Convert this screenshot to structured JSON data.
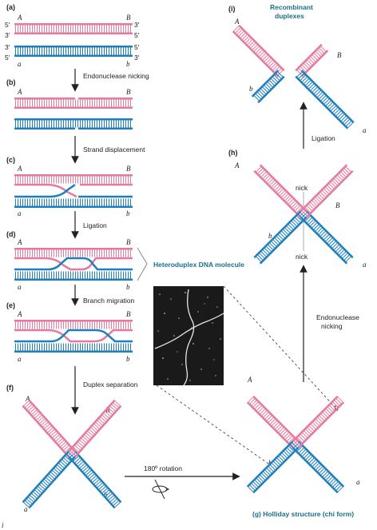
{
  "colors": {
    "pink": "#e5799f",
    "blue": "#1e7fbd",
    "teal": "#1b6f8a",
    "text": "#222222"
  },
  "panels": {
    "a": "(a)",
    "b": "(b)",
    "c": "(c)",
    "d": "(d)",
    "e": "(e)",
    "f": "(f)",
    "g": "(g)",
    "h": "(h)",
    "i": "(i)"
  },
  "ends": {
    "five": "5′",
    "three": "3′"
  },
  "alleles": {
    "A": "A",
    "B": "B",
    "a": "a",
    "b": "b"
  },
  "steps": {
    "nicking": "Endonuclease nicking",
    "displacement": "Strand displacement",
    "ligation": "Ligation",
    "branch": "Branch migration",
    "separation": "Duplex separation",
    "rotation": "180º rotation",
    "endo_line1": "Endonuclease",
    "endo_line2": "nicking",
    "ligation2": "Ligation",
    "nick": "nick"
  },
  "labels": {
    "heteroduplex": "Heteroduplex DNA molecule",
    "holliday": "(g)  Holliday structure (chi form)",
    "recombinant_line1": "Recombinant",
    "recombinant_line2": "duplexes",
    "corner": "i"
  },
  "micrograph": {
    "icon": "electron-micrograph-photo"
  }
}
